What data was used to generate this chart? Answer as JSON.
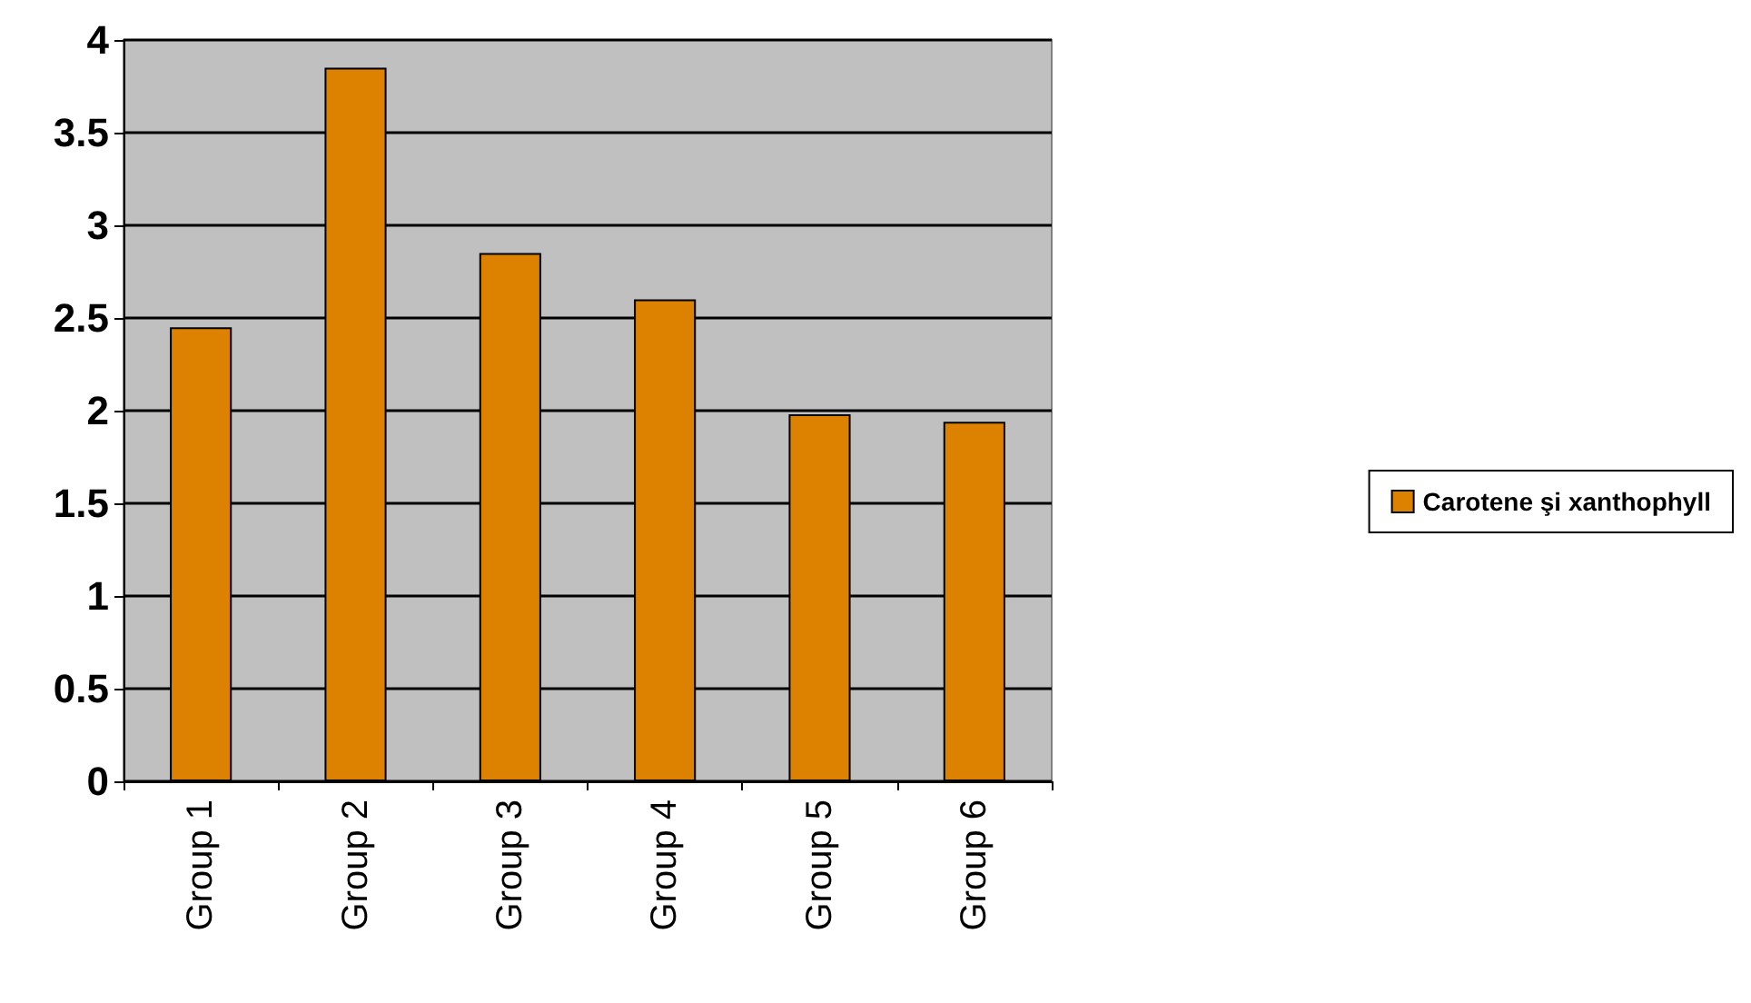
{
  "chart_data": {
    "type": "bar",
    "categories": [
      "Group 1",
      "Group 2",
      "Group 3",
      "Group 4",
      "Group 5",
      "Group 6"
    ],
    "series": [
      {
        "name": "Carotene şi xanthophyll",
        "color": "#dd8200",
        "values": [
          2.45,
          3.85,
          2.85,
          2.6,
          1.98,
          1.94
        ]
      }
    ],
    "ylim": [
      0,
      4
    ],
    "yticks": [
      0,
      0.5,
      1,
      1.5,
      2,
      2.5,
      3,
      3.5,
      4
    ],
    "grid": "y",
    "legend": "right"
  }
}
